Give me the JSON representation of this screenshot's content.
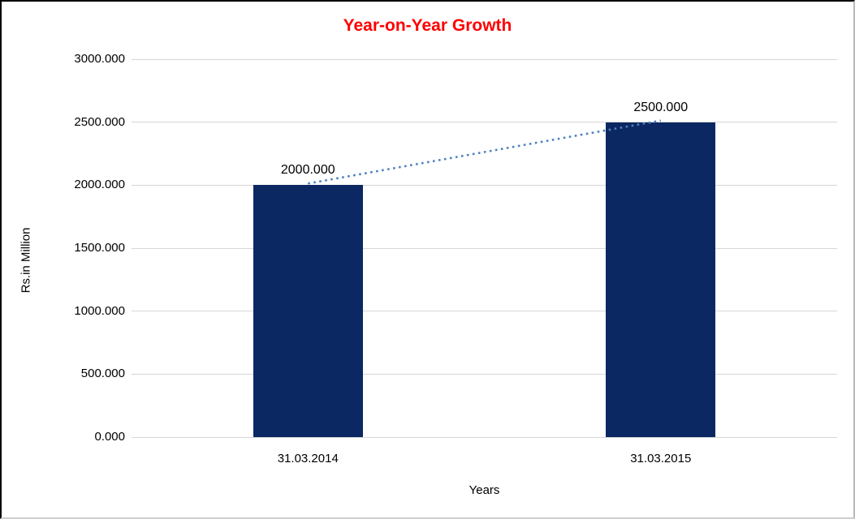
{
  "chart_data": {
    "type": "bar",
    "title": "Year-on-Year Growth",
    "title_color": "#ff0000",
    "categories": [
      "31.03.2014",
      "31.03.2015"
    ],
    "series": [
      {
        "name": "Growth",
        "values": [
          2000,
          2500
        ]
      }
    ],
    "data_labels": [
      "2000.000",
      "2500.000"
    ],
    "xlabel": "Years",
    "ylabel": "Rs.in Million",
    "ylim": [
      0,
      3000
    ],
    "ytick_step": 500,
    "ytick_labels": [
      "0.000",
      "500.000",
      "1000.000",
      "1500.000",
      "2000.000",
      "2500.000",
      "3000.000"
    ],
    "bar_color": "#0c2862",
    "gridline_color": "#d6d6d6",
    "grid": true,
    "legend_position": "none",
    "trendline": {
      "style": "dotted",
      "color": "#4f81bd"
    }
  }
}
